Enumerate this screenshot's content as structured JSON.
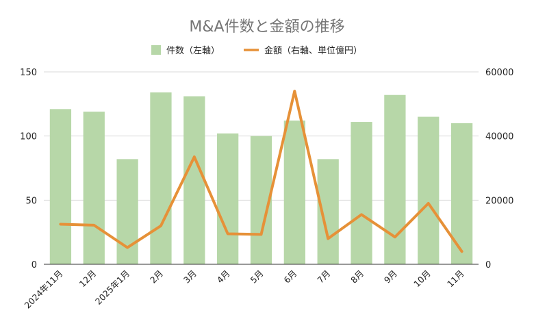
{
  "chart_data": {
    "type": "bar+line",
    "title": "M&A件数と金額の推移",
    "categories": [
      "2024年11月",
      "12月",
      "2025年1月",
      "2月",
      "3月",
      "4月",
      "5月",
      "6月",
      "7月",
      "8月",
      "9月",
      "10月",
      "11月"
    ],
    "series": [
      {
        "name": "件数（左軸）",
        "type": "bar",
        "axis": "left",
        "color": "#b7d7a8",
        "values": [
          121,
          119,
          82,
          134,
          131,
          102,
          100,
          112,
          82,
          111,
          132,
          115,
          110
        ]
      },
      {
        "name": "金額（右軸、単位億円）",
        "type": "line",
        "axis": "right",
        "color": "#e69138",
        "values": [
          12500,
          12200,
          5200,
          12000,
          33500,
          9500,
          9300,
          54000,
          8000,
          15500,
          8500,
          19000,
          4000
        ]
      }
    ],
    "y_left": {
      "ticks": [
        "0",
        "50",
        "100",
        "150"
      ],
      "range": [
        0,
        150
      ]
    },
    "y_right": {
      "ticks": [
        "0",
        "20000",
        "40000",
        "60000"
      ],
      "range": [
        0,
        60000
      ]
    },
    "grid": true,
    "legend_position": "top"
  }
}
